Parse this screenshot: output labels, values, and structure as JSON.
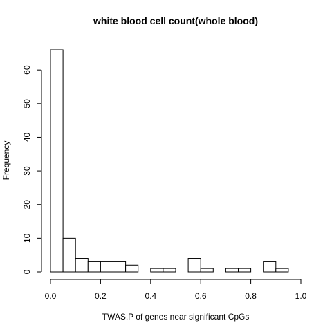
{
  "chart_data": {
    "type": "histogram",
    "title": "white blood cell count(whole blood)",
    "xlabel": "TWAS.P of genes near significant CpGs",
    "ylabel": "Frequency",
    "xlim": [
      0,
      1
    ],
    "ylim": [
      0,
      66
    ],
    "bin_width": 0.05,
    "bins": [
      {
        "x0": 0.0,
        "x1": 0.05,
        "count": 66
      },
      {
        "x0": 0.05,
        "x1": 0.1,
        "count": 10
      },
      {
        "x0": 0.1,
        "x1": 0.15,
        "count": 4
      },
      {
        "x0": 0.15,
        "x1": 0.2,
        "count": 3
      },
      {
        "x0": 0.2,
        "x1": 0.25,
        "count": 3
      },
      {
        "x0": 0.25,
        "x1": 0.3,
        "count": 3
      },
      {
        "x0": 0.3,
        "x1": 0.35,
        "count": 2
      },
      {
        "x0": 0.35,
        "x1": 0.4,
        "count": 0
      },
      {
        "x0": 0.4,
        "x1": 0.45,
        "count": 1
      },
      {
        "x0": 0.45,
        "x1": 0.5,
        "count": 1
      },
      {
        "x0": 0.5,
        "x1": 0.55,
        "count": 0
      },
      {
        "x0": 0.55,
        "x1": 0.6,
        "count": 4
      },
      {
        "x0": 0.6,
        "x1": 0.65,
        "count": 1
      },
      {
        "x0": 0.65,
        "x1": 0.7,
        "count": 0
      },
      {
        "x0": 0.7,
        "x1": 0.75,
        "count": 1
      },
      {
        "x0": 0.75,
        "x1": 0.8,
        "count": 1
      },
      {
        "x0": 0.8,
        "x1": 0.85,
        "count": 0
      },
      {
        "x0": 0.85,
        "x1": 0.9,
        "count": 3
      },
      {
        "x0": 0.9,
        "x1": 0.95,
        "count": 1
      }
    ],
    "x_ticks": [
      "0.0",
      "0.2",
      "0.4",
      "0.6",
      "0.8",
      "1.0"
    ],
    "y_ticks": [
      "0",
      "10",
      "20",
      "30",
      "40",
      "50",
      "60"
    ],
    "grid": false,
    "colors": {
      "bar_fill": "#ffffff",
      "bar_stroke": "#000000",
      "axis": "#000000"
    }
  }
}
